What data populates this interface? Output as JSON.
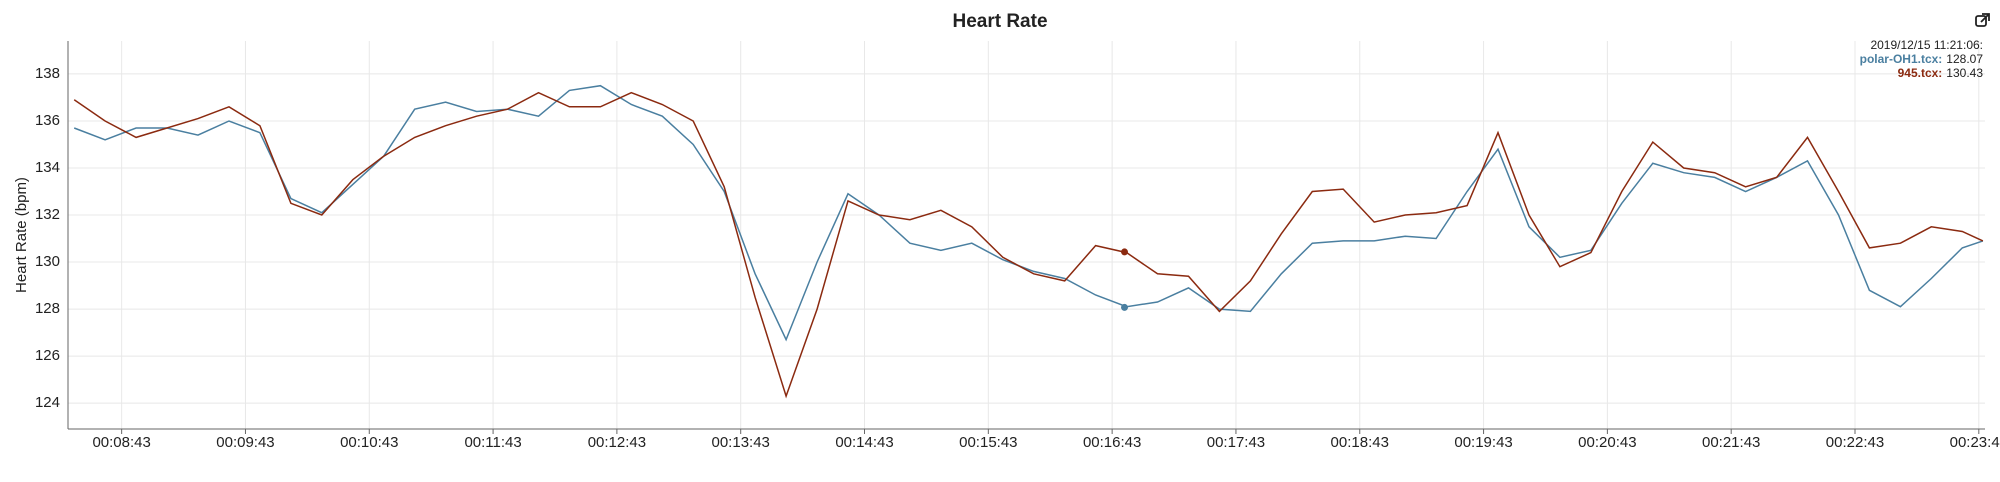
{
  "chart_data": {
    "type": "line",
    "title": "Heart Rate",
    "y_label": "Heart Rate (bpm)",
    "x": [
      500,
      515,
      530,
      545,
      560,
      575,
      590,
      605,
      620,
      635,
      650,
      665,
      680,
      695,
      710,
      725,
      740,
      755,
      770,
      785,
      800,
      815,
      830,
      845,
      860,
      875,
      890,
      905,
      920,
      935,
      950,
      965,
      980,
      995,
      1010,
      1025,
      1040,
      1055,
      1070,
      1085,
      1100,
      1115,
      1130,
      1145,
      1160,
      1175,
      1190,
      1205,
      1220,
      1235,
      1250,
      1265,
      1280,
      1295,
      1310,
      1325,
      1340,
      1355,
      1370,
      1385,
      1400,
      1415,
      1425
    ],
    "series": [
      {
        "name": "polar-OH1.tcx",
        "color": "#4a7fa0",
        "values": [
          135.7,
          135.2,
          135.7,
          135.7,
          135.4,
          136.0,
          135.5,
          132.7,
          132.1,
          133.3,
          134.5,
          136.5,
          136.8,
          136.4,
          136.5,
          136.2,
          137.3,
          137.5,
          136.7,
          136.2,
          135.0,
          133.0,
          129.5,
          126.7,
          130.0,
          132.9,
          132.0,
          130.8,
          130.5,
          130.8,
          130.1,
          129.6,
          129.3,
          128.6,
          128.1,
          128.3,
          128.9,
          128.0,
          127.9,
          129.5,
          130.8,
          130.9,
          130.9,
          131.1,
          131.0,
          133.0,
          134.8,
          131.5,
          130.2,
          130.5,
          132.5,
          134.2,
          133.8,
          133.6,
          133.0,
          133.6,
          134.3,
          132.0,
          128.8,
          128.1,
          129.3,
          130.6,
          130.9
        ]
      },
      {
        "name": "945.tcx",
        "color": "#8b2a10",
        "values": [
          136.9,
          136.0,
          135.3,
          135.7,
          136.1,
          136.6,
          135.8,
          132.5,
          132.0,
          133.5,
          134.5,
          135.3,
          135.8,
          136.2,
          136.5,
          137.2,
          136.6,
          136.6,
          137.2,
          136.7,
          136.0,
          133.2,
          128.5,
          124.3,
          128.0,
          132.6,
          132.0,
          131.8,
          132.2,
          131.5,
          130.2,
          129.5,
          129.2,
          130.7,
          130.4,
          129.5,
          129.4,
          127.9,
          129.2,
          131.2,
          133.0,
          133.1,
          131.7,
          132.0,
          132.1,
          132.4,
          135.5,
          132.0,
          129.8,
          130.4,
          133.0,
          135.1,
          134.0,
          133.8,
          133.2,
          133.6,
          135.3,
          133.0,
          130.6,
          130.8,
          131.5,
          131.3,
          130.9
        ]
      }
    ],
    "xlim": [
      497,
      1426
    ],
    "ylim": [
      122.9,
      139.4
    ],
    "xticks": [
      {
        "value": 523,
        "label": "00:08:43"
      },
      {
        "value": 583,
        "label": "00:09:43"
      },
      {
        "value": 643,
        "label": "00:10:43"
      },
      {
        "value": 703,
        "label": "00:11:43"
      },
      {
        "value": 763,
        "label": "00:12:43"
      },
      {
        "value": 823,
        "label": "00:13:43"
      },
      {
        "value": 883,
        "label": "00:14:43"
      },
      {
        "value": 943,
        "label": "00:15:43"
      },
      {
        "value": 1003,
        "label": "00:16:43"
      },
      {
        "value": 1063,
        "label": "00:17:43"
      },
      {
        "value": 1123,
        "label": "00:18:43"
      },
      {
        "value": 1183,
        "label": "00:19:43"
      },
      {
        "value": 1243,
        "label": "00:20:43"
      },
      {
        "value": 1303,
        "label": "00:21:43"
      },
      {
        "value": 1363,
        "label": "00:22:43"
      },
      {
        "value": 1423,
        "label": "00:23:43"
      }
    ],
    "yticks": [
      124,
      126,
      128,
      130,
      132,
      134,
      136,
      138
    ],
    "grid": true,
    "tooltip": {
      "time": "2019/12/15 11:21:06:",
      "x": 1009,
      "items": [
        {
          "name": "polar-OH1.tcx:",
          "value": 128.07
        },
        {
          "name": "945.tcx:",
          "value": 130.43
        }
      ]
    }
  }
}
